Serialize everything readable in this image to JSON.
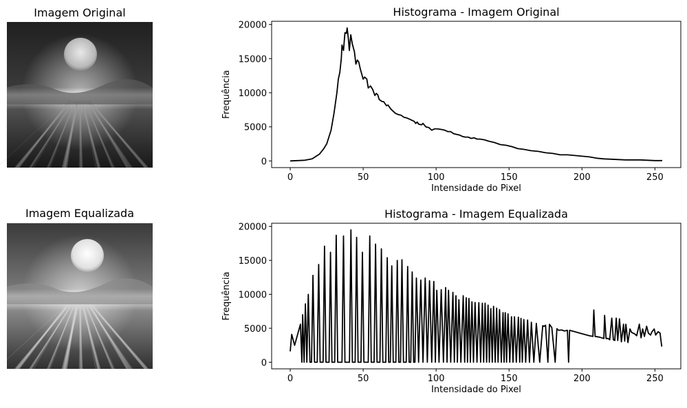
{
  "images": [
    {
      "title": "Imagem Original",
      "style": "original"
    },
    {
      "title": "Imagem Equalizada",
      "style": "equalized"
    }
  ],
  "chart_data": [
    {
      "type": "line",
      "title": "Histograma - Imagem Original",
      "xlabel": "Intensidade do Pixel",
      "ylabel": "Frequência",
      "xlim": [
        -12.75,
        267.75
      ],
      "ylim": [
        -975,
        20475
      ],
      "xticks": [
        0,
        50,
        100,
        150,
        200,
        250
      ],
      "yticks": [
        0,
        5000,
        10000,
        15000,
        20000
      ],
      "line_color": "#000000",
      "points": [
        [
          0,
          0
        ],
        [
          10,
          100
        ],
        [
          15,
          300
        ],
        [
          20,
          1000
        ],
        [
          23,
          1800
        ],
        [
          25,
          2500
        ],
        [
          28,
          4500
        ],
        [
          30,
          7000
        ],
        [
          32,
          10000
        ],
        [
          33,
          12000
        ],
        [
          34,
          13000
        ],
        [
          35,
          15000
        ],
        [
          35.5,
          17000
        ],
        [
          36.5,
          16200
        ],
        [
          37.5,
          18800
        ],
        [
          38.5,
          18700
        ],
        [
          39,
          19500
        ],
        [
          39.8,
          18000
        ],
        [
          40.5,
          16200
        ],
        [
          41.5,
          18500
        ],
        [
          42.5,
          17200
        ],
        [
          44,
          16000
        ],
        [
          45,
          14200
        ],
        [
          46,
          14800
        ],
        [
          47,
          14500
        ],
        [
          48,
          13500
        ],
        [
          50,
          12000
        ],
        [
          51,
          12300
        ],
        [
          52.5,
          12000
        ],
        [
          53.5,
          10700
        ],
        [
          55,
          11000
        ],
        [
          56.5,
          10500
        ],
        [
          58,
          9600
        ],
        [
          59,
          9900
        ],
        [
          60,
          9700
        ],
        [
          61,
          9000
        ],
        [
          63,
          8700
        ],
        [
          64,
          8700
        ],
        [
          65,
          8400
        ],
        [
          66,
          8100
        ],
        [
          67,
          8200
        ],
        [
          69,
          7600
        ],
        [
          70,
          7400
        ],
        [
          72,
          7000
        ],
        [
          74,
          6800
        ],
        [
          76,
          6700
        ],
        [
          78,
          6400
        ],
        [
          80,
          6300
        ],
        [
          82,
          6100
        ],
        [
          84,
          5900
        ],
        [
          85,
          5800
        ],
        [
          86,
          5500
        ],
        [
          87,
          5700
        ],
        [
          88,
          5400
        ],
        [
          90,
          5300
        ],
        [
          91,
          5500
        ],
        [
          93,
          5000
        ],
        [
          95,
          4900
        ],
        [
          97,
          4500
        ],
        [
          99,
          4700
        ],
        [
          101,
          4700
        ],
        [
          104,
          4600
        ],
        [
          106,
          4500
        ],
        [
          108,
          4300
        ],
        [
          110,
          4300
        ],
        [
          112,
          4000
        ],
        [
          114,
          3900
        ],
        [
          116,
          3800
        ],
        [
          118,
          3600
        ],
        [
          120,
          3500
        ],
        [
          122,
          3500
        ],
        [
          124,
          3300
        ],
        [
          126,
          3400
        ],
        [
          128,
          3200
        ],
        [
          130,
          3200
        ],
        [
          133,
          3100
        ],
        [
          136,
          2900
        ],
        [
          140,
          2700
        ],
        [
          144,
          2400
        ],
        [
          148,
          2300
        ],
        [
          152,
          2100
        ],
        [
          156,
          1800
        ],
        [
          160,
          1700
        ],
        [
          165,
          1500
        ],
        [
          170,
          1400
        ],
        [
          175,
          1200
        ],
        [
          180,
          1100
        ],
        [
          185,
          900
        ],
        [
          190,
          900
        ],
        [
          195,
          800
        ],
        [
          200,
          700
        ],
        [
          205,
          600
        ],
        [
          210,
          400
        ],
        [
          215,
          300
        ],
        [
          220,
          250
        ],
        [
          225,
          200
        ],
        [
          230,
          150
        ],
        [
          235,
          150
        ],
        [
          240,
          150
        ],
        [
          245,
          100
        ],
        [
          250,
          50
        ],
        [
          255,
          50
        ]
      ]
    },
    {
      "type": "line",
      "title": "Histograma - Imagem Equalizada",
      "xlabel": "Intensidade do Pixel",
      "ylabel": "Frequência",
      "xlim": [
        -12.75,
        267.75
      ],
      "ylim": [
        -975,
        20475
      ],
      "xticks": [
        0,
        50,
        100,
        150,
        200,
        250
      ],
      "yticks": [
        0,
        5000,
        10000,
        15000,
        20000
      ],
      "line_color": "#000000",
      "points": [
        [
          0,
          1600
        ],
        [
          1,
          4100
        ],
        [
          3,
          2500
        ],
        [
          7,
          5600
        ],
        [
          8,
          0
        ],
        [
          8.5,
          7000
        ],
        [
          9.5,
          0
        ],
        [
          10.4,
          8600
        ],
        [
          11.4,
          0
        ],
        [
          12.4,
          10000
        ],
        [
          13.5,
          0
        ],
        [
          14.6,
          0
        ],
        [
          15.6,
          12800
        ],
        [
          16.6,
          0
        ],
        [
          18.5,
          0
        ],
        [
          19.5,
          14400
        ],
        [
          20.5,
          0
        ],
        [
          22.5,
          0
        ],
        [
          23.5,
          17100
        ],
        [
          24.5,
          0
        ],
        [
          26.6,
          0
        ],
        [
          27.6,
          16200
        ],
        [
          28.6,
          0
        ],
        [
          30.5,
          0
        ],
        [
          31.5,
          18700
        ],
        [
          32.5,
          0
        ],
        [
          35.5,
          0
        ],
        [
          36.5,
          18600
        ],
        [
          37.5,
          0
        ],
        [
          40.6,
          0
        ],
        [
          41.6,
          19500
        ],
        [
          42.6,
          0
        ],
        [
          44.5,
          0
        ],
        [
          45.5,
          18400
        ],
        [
          46.5,
          0
        ],
        [
          48.5,
          0
        ],
        [
          49.5,
          16200
        ],
        [
          50.5,
          0
        ],
        [
          53.5,
          0
        ],
        [
          54.5,
          18600
        ],
        [
          55.5,
          0
        ],
        [
          57.5,
          0
        ],
        [
          58.5,
          17400
        ],
        [
          59.5,
          0
        ],
        [
          61.5,
          0
        ],
        [
          62.5,
          16700
        ],
        [
          63.5,
          0
        ],
        [
          65.5,
          0
        ],
        [
          66.5,
          15400
        ],
        [
          67.5,
          0
        ],
        [
          68.6,
          0
        ],
        [
          69.6,
          14200
        ],
        [
          70.6,
          0
        ],
        [
          72.4,
          0
        ],
        [
          73.4,
          15000
        ],
        [
          74.4,
          0
        ],
        [
          75.6,
          0
        ],
        [
          76.6,
          15100
        ],
        [
          77.6,
          0
        ],
        [
          79.5,
          0
        ],
        [
          80.5,
          14100
        ],
        [
          81.5,
          0
        ],
        [
          82.6,
          0
        ],
        [
          83.6,
          13300
        ],
        [
          84.6,
          0
        ],
        [
          85.5,
          0
        ],
        [
          86.5,
          12400
        ],
        [
          88,
          0
        ],
        [
          89.5,
          12100
        ],
        [
          91,
          0
        ],
        [
          92.5,
          12400
        ],
        [
          94,
          0
        ],
        [
          95.5,
          12000
        ],
        [
          97,
          0
        ],
        [
          98.4,
          11900
        ],
        [
          99.5,
          0
        ],
        [
          100.5,
          10600
        ],
        [
          102,
          0
        ],
        [
          103.5,
          10700
        ],
        [
          105,
          0
        ],
        [
          106.5,
          11000
        ],
        [
          107.5,
          0
        ],
        [
          108.5,
          10600
        ],
        [
          110,
          0
        ],
        [
          111.5,
          10300
        ],
        [
          112.5,
          0
        ],
        [
          113.6,
          9800
        ],
        [
          114.6,
          0
        ],
        [
          115.6,
          9200
        ],
        [
          117,
          0
        ],
        [
          118.6,
          9800
        ],
        [
          119.6,
          0
        ],
        [
          120.6,
          9500
        ],
        [
          121.5,
          0
        ],
        [
          122.5,
          9400
        ],
        [
          123.5,
          0
        ],
        [
          124.6,
          8900
        ],
        [
          125.6,
          0
        ],
        [
          126.7,
          8800
        ],
        [
          128,
          0
        ],
        [
          129.3,
          8780
        ],
        [
          130.5,
          0
        ],
        [
          131.7,
          8700
        ],
        [
          132.6,
          0
        ],
        [
          133.6,
          8700
        ],
        [
          134.6,
          0
        ],
        [
          135.6,
          8400
        ],
        [
          136.5,
          0
        ],
        [
          137.5,
          7900
        ],
        [
          138.5,
          0
        ],
        [
          139.4,
          8230
        ],
        [
          140.5,
          0
        ],
        [
          141.5,
          7960
        ],
        [
          142.5,
          0
        ],
        [
          143.5,
          7750
        ],
        [
          144.7,
          0
        ],
        [
          145.9,
          7310
        ],
        [
          146.6,
          0
        ],
        [
          147.4,
          7310
        ],
        [
          148.3,
          0
        ],
        [
          149.3,
          7130
        ],
        [
          150.5,
          0
        ],
        [
          151.7,
          6700
        ],
        [
          152.7,
          0
        ],
        [
          153.7,
          6700
        ],
        [
          155,
          0
        ],
        [
          156.4,
          6630
        ],
        [
          157.3,
          0
        ],
        [
          158.2,
          6460
        ],
        [
          159.1,
          0
        ],
        [
          160.1,
          6290
        ],
        [
          161.4,
          0
        ],
        [
          162.7,
          6220
        ],
        [
          164,
          0
        ],
        [
          165.3,
          5890
        ],
        [
          167,
          0
        ],
        [
          168.7,
          5720
        ],
        [
          171,
          0
        ],
        [
          173.1,
          5380
        ],
        [
          174,
          5300
        ],
        [
          175,
          5450
        ],
        [
          176.6,
          0
        ],
        [
          177.7,
          5580
        ],
        [
          179.3,
          5110
        ],
        [
          181.6,
          0
        ],
        [
          182.8,
          4940
        ],
        [
          184,
          4700
        ],
        [
          186,
          4750
        ],
        [
          188,
          4600
        ],
        [
          190,
          4700
        ],
        [
          190.8,
          0
        ],
        [
          191.5,
          4700
        ],
        [
          195,
          4500
        ],
        [
          200,
          4200
        ],
        [
          205,
          3900
        ],
        [
          207.5,
          3800
        ],
        [
          208.1,
          7700
        ],
        [
          209,
          3800
        ],
        [
          212,
          3700
        ],
        [
          215,
          3500
        ],
        [
          215.5,
          6900
        ],
        [
          216.5,
          3500
        ],
        [
          218,
          3500
        ],
        [
          219,
          3300
        ],
        [
          220.4,
          6500
        ],
        [
          221.5,
          3300
        ],
        [
          222.5,
          3200
        ],
        [
          223.5,
          6500
        ],
        [
          224.5,
          3200
        ],
        [
          225.7,
          6400
        ],
        [
          227,
          3000
        ],
        [
          228.5,
          5600
        ],
        [
          229.3,
          3100
        ],
        [
          230.1,
          5600
        ],
        [
          231.5,
          2900
        ],
        [
          232.9,
          4900
        ],
        [
          234,
          4400
        ],
        [
          236,
          4200
        ],
        [
          237.5,
          3900
        ],
        [
          239.3,
          5600
        ],
        [
          240.5,
          3600
        ],
        [
          241.6,
          4900
        ],
        [
          242.8,
          3800
        ],
        [
          244.3,
          5300
        ],
        [
          245.5,
          4300
        ],
        [
          247,
          4000
        ],
        [
          248,
          4500
        ],
        [
          249.5,
          4900
        ],
        [
          250.5,
          4000
        ],
        [
          252.2,
          4500
        ],
        [
          253.5,
          4300
        ],
        [
          254.7,
          2300
        ]
      ]
    }
  ]
}
